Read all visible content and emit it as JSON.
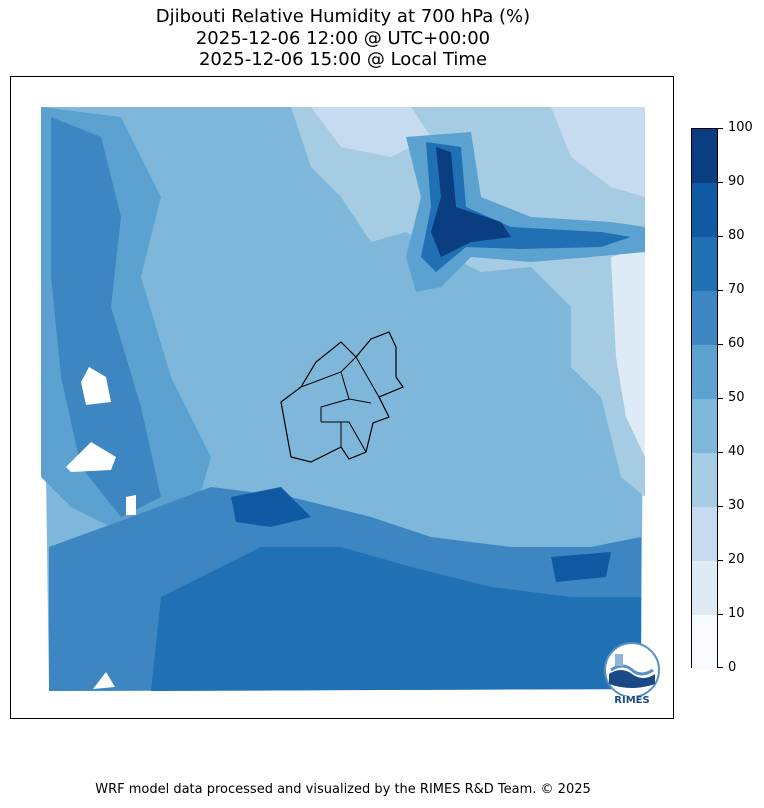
{
  "title": {
    "line1": "Djibouti Relative Humidity at 700 hPa (%)",
    "line2": "2025-12-06 12:00 @ UTC+00:00",
    "line3": "2025-12-06 15:00 @ Local Time"
  },
  "colorbar": {
    "ticks": [
      "0",
      "10",
      "20",
      "30",
      "40",
      "50",
      "60",
      "70",
      "80",
      "90",
      "100"
    ],
    "colors": [
      "#f7fbff",
      "#deebf7",
      "#c6dbef",
      "#a5cce3",
      "#7fb7da",
      "#5ba2d0",
      "#3d86c2",
      "#2070b4",
      "#105aa4",
      "#0a3e80"
    ]
  },
  "logo": {
    "icon": "rimes-logo-icon",
    "text": "RIMES"
  },
  "footer": "WRF model data processed and visualized by the RIMES R&D Team. © 2025"
}
